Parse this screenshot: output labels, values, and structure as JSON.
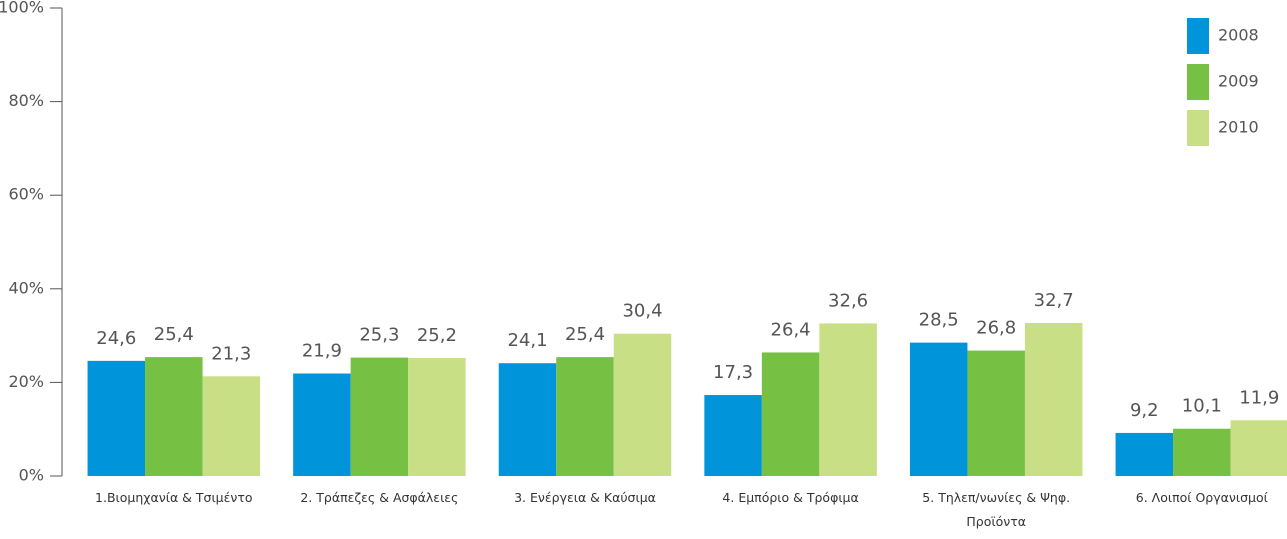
{
  "chart_data": {
    "type": "bar",
    "categories": [
      "1.Βιομηχανία & Τσιμέντο",
      "2. Τράπεζες & Ασφάλειες",
      "3. Ενέργεια & Καύσιμα",
      "4. Εμπόριο & Τρόφιμα",
      "5. Τηλεπ/νωνίες & Ψηφ. Προϊόντα",
      "6. Λοιποί Οργανισμοί"
    ],
    "series": [
      {
        "name": "2008",
        "color": "#0095da",
        "values": [
          24.6,
          21.9,
          24.1,
          17.3,
          28.5,
          9.2
        ],
        "value_labels": [
          "24,6",
          "21,9",
          "24,1",
          "17,3",
          "28,5",
          "9,2"
        ]
      },
      {
        "name": "2009",
        "color": "#76c043",
        "values": [
          25.4,
          25.3,
          25.4,
          26.4,
          26.8,
          10.1
        ],
        "value_labels": [
          "25,4",
          "25,3",
          "25,4",
          "26,4",
          "26,8",
          "10,1"
        ]
      },
      {
        "name": "2010",
        "color": "#c8df85",
        "values": [
          21.3,
          25.2,
          30.4,
          32.6,
          32.7,
          11.9
        ],
        "value_labels": [
          "21,3",
          "25,2",
          "30,4",
          "32,6",
          "32,7",
          "11,9"
        ]
      }
    ],
    "ylim": [
      0,
      100
    ],
    "yticks": [
      {
        "value": 0,
        "label": "0%"
      },
      {
        "value": 20,
        "label": "20%"
      },
      {
        "value": 40,
        "label": "40%"
      },
      {
        "value": 60,
        "label": "60%"
      },
      {
        "value": 80,
        "label": "80%"
      },
      {
        "value": 100,
        "label": "100%"
      }
    ],
    "legend": "top-right",
    "grid": false
  }
}
